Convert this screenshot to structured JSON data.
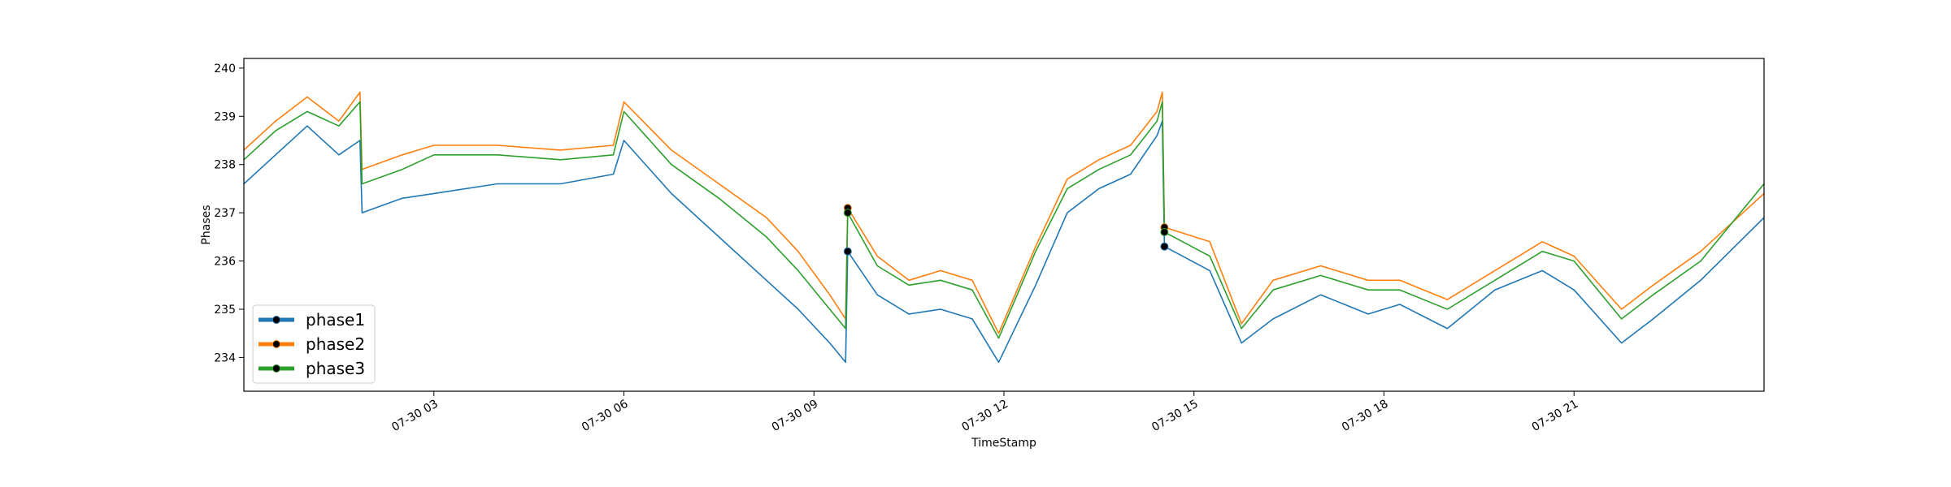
{
  "chart_data": {
    "type": "line",
    "title": "",
    "xlabel": "TimeStamp",
    "ylabel": "Phases",
    "x_range": [
      "2025-07-30 00:00",
      "2025-07-31 00:00"
    ],
    "x_ticks": [
      {
        "value": "2025-07-30 03:00",
        "label": "07-30 03"
      },
      {
        "value": "2025-07-30 06:00",
        "label": "07-30 06"
      },
      {
        "value": "2025-07-30 09:00",
        "label": "07-30 09"
      },
      {
        "value": "2025-07-30 12:00",
        "label": "07-30 12"
      },
      {
        "value": "2025-07-30 15:00",
        "label": "07-30 15"
      },
      {
        "value": "2025-07-30 18:00",
        "label": "07-30 18"
      },
      {
        "value": "2025-07-30 21:00",
        "label": "07-30 21"
      }
    ],
    "ylim": [
      233.3,
      240.2
    ],
    "y_ticks": [
      234,
      235,
      236,
      237,
      238,
      239,
      240
    ],
    "grid": false,
    "legend_position": "lower-left",
    "series": [
      {
        "name": "phase1",
        "color": "#1f77b4",
        "x": [
          "2025-07-30 00:00",
          "2025-07-30 00:30",
          "2025-07-30 01:00",
          "2025-07-30 01:30",
          "2025-07-30 01:50",
          "2025-07-30 01:52",
          "2025-07-30 02:30",
          "2025-07-30 03:00",
          "2025-07-30 04:00",
          "2025-07-30 05:00",
          "2025-07-30 05:50",
          "2025-07-30 06:00",
          "2025-07-30 06:45",
          "2025-07-30 07:30",
          "2025-07-30 08:15",
          "2025-07-30 08:45",
          "2025-07-30 09:15",
          "2025-07-30 09:30",
          "2025-07-30 09:32",
          "2025-07-30 10:00",
          "2025-07-30 10:30",
          "2025-07-30 11:00",
          "2025-07-30 11:30",
          "2025-07-30 11:55",
          "2025-07-30 12:30",
          "2025-07-30 13:00",
          "2025-07-30 13:30",
          "2025-07-30 14:00",
          "2025-07-30 14:25",
          "2025-07-30 14:30",
          "2025-07-30 14:32",
          "2025-07-30 15:15",
          "2025-07-30 15:45",
          "2025-07-30 16:15",
          "2025-07-30 17:00",
          "2025-07-30 17:45",
          "2025-07-30 18:15",
          "2025-07-30 19:00",
          "2025-07-30 19:45",
          "2025-07-30 20:30",
          "2025-07-30 21:00",
          "2025-07-30 21:45",
          "2025-07-30 22:15",
          "2025-07-30 23:00",
          "2025-07-31 00:00"
        ],
        "y": [
          237.6,
          238.2,
          238.8,
          238.2,
          238.5,
          237.0,
          237.3,
          237.4,
          237.6,
          237.6,
          237.8,
          238.5,
          237.4,
          236.5,
          235.6,
          235.0,
          234.3,
          233.9,
          236.2,
          235.3,
          234.9,
          235.0,
          234.8,
          233.9,
          235.5,
          237.0,
          237.5,
          237.8,
          238.6,
          238.9,
          236.3,
          235.8,
          234.3,
          234.8,
          235.3,
          234.9,
          235.1,
          234.6,
          235.4,
          235.8,
          235.4,
          234.3,
          234.8,
          235.6,
          236.9
        ]
      },
      {
        "name": "phase2",
        "color": "#ff7f0e",
        "x": [
          "2025-07-30 00:00",
          "2025-07-30 00:30",
          "2025-07-30 01:00",
          "2025-07-30 01:30",
          "2025-07-30 01:50",
          "2025-07-30 01:52",
          "2025-07-30 02:30",
          "2025-07-30 03:00",
          "2025-07-30 04:00",
          "2025-07-30 05:00",
          "2025-07-30 05:50",
          "2025-07-30 06:00",
          "2025-07-30 06:45",
          "2025-07-30 07:30",
          "2025-07-30 08:15",
          "2025-07-30 08:45",
          "2025-07-30 09:15",
          "2025-07-30 09:30",
          "2025-07-30 09:32",
          "2025-07-30 10:00",
          "2025-07-30 10:30",
          "2025-07-30 11:00",
          "2025-07-30 11:30",
          "2025-07-30 11:55",
          "2025-07-30 12:30",
          "2025-07-30 13:00",
          "2025-07-30 13:30",
          "2025-07-30 14:00",
          "2025-07-30 14:25",
          "2025-07-30 14:30",
          "2025-07-30 14:32",
          "2025-07-30 15:15",
          "2025-07-30 15:45",
          "2025-07-30 16:15",
          "2025-07-30 17:00",
          "2025-07-30 17:45",
          "2025-07-30 18:15",
          "2025-07-30 19:00",
          "2025-07-30 19:45",
          "2025-07-30 20:30",
          "2025-07-30 21:00",
          "2025-07-30 21:45",
          "2025-07-30 22:15",
          "2025-07-30 23:00",
          "2025-07-31 00:00"
        ],
        "y": [
          238.3,
          238.9,
          239.4,
          238.9,
          239.5,
          237.9,
          238.2,
          238.4,
          238.4,
          238.3,
          238.4,
          239.3,
          238.3,
          237.6,
          236.9,
          236.2,
          235.3,
          234.8,
          237.1,
          236.1,
          235.6,
          235.8,
          235.6,
          234.5,
          236.3,
          237.7,
          238.1,
          238.4,
          239.1,
          239.5,
          236.7,
          236.4,
          234.7,
          235.6,
          235.9,
          235.6,
          235.6,
          235.2,
          235.8,
          236.4,
          236.1,
          235.0,
          235.5,
          236.2,
          237.4
        ]
      },
      {
        "name": "phase3",
        "color": "#2ca02c",
        "x": [
          "2025-07-30 00:00",
          "2025-07-30 00:30",
          "2025-07-30 01:00",
          "2025-07-30 01:30",
          "2025-07-30 01:50",
          "2025-07-30 01:52",
          "2025-07-30 02:30",
          "2025-07-30 03:00",
          "2025-07-30 04:00",
          "2025-07-30 05:00",
          "2025-07-30 05:50",
          "2025-07-30 06:00",
          "2025-07-30 06:45",
          "2025-07-30 07:30",
          "2025-07-30 08:15",
          "2025-07-30 08:45",
          "2025-07-30 09:15",
          "2025-07-30 09:30",
          "2025-07-30 09:32",
          "2025-07-30 10:00",
          "2025-07-30 10:30",
          "2025-07-30 11:00",
          "2025-07-30 11:30",
          "2025-07-30 11:55",
          "2025-07-30 12:30",
          "2025-07-30 13:00",
          "2025-07-30 13:30",
          "2025-07-30 14:00",
          "2025-07-30 14:25",
          "2025-07-30 14:30",
          "2025-07-30 14:32",
          "2025-07-30 15:15",
          "2025-07-30 15:45",
          "2025-07-30 16:15",
          "2025-07-30 17:00",
          "2025-07-30 17:45",
          "2025-07-30 18:15",
          "2025-07-30 19:00",
          "2025-07-30 19:45",
          "2025-07-30 20:30",
          "2025-07-30 21:00",
          "2025-07-30 21:45",
          "2025-07-30 22:15",
          "2025-07-30 23:00",
          "2025-07-31 00:00"
        ],
        "y": [
          238.1,
          238.7,
          239.1,
          238.8,
          239.3,
          237.6,
          237.9,
          238.2,
          238.2,
          238.1,
          238.2,
          239.1,
          238.0,
          237.3,
          236.5,
          235.8,
          235.0,
          234.6,
          237.0,
          235.9,
          235.5,
          235.6,
          235.4,
          234.4,
          236.2,
          237.5,
          237.9,
          238.2,
          238.9,
          239.3,
          236.6,
          236.1,
          234.6,
          235.4,
          235.7,
          235.4,
          235.4,
          235.0,
          235.6,
          236.2,
          236.0,
          234.8,
          235.3,
          236.0,
          237.6
        ]
      }
    ],
    "markers": [
      {
        "series": "phase1",
        "x": "2025-07-30 09:32",
        "y": 236.2
      },
      {
        "series": "phase2",
        "x": "2025-07-30 09:32",
        "y": 237.1
      },
      {
        "series": "phase3",
        "x": "2025-07-30 09:32",
        "y": 237.0
      },
      {
        "series": "phase1",
        "x": "2025-07-30 14:32",
        "y": 236.3
      },
      {
        "series": "phase2",
        "x": "2025-07-30 14:32",
        "y": 236.7
      },
      {
        "series": "phase3",
        "x": "2025-07-30 14:32",
        "y": 236.6
      }
    ]
  }
}
